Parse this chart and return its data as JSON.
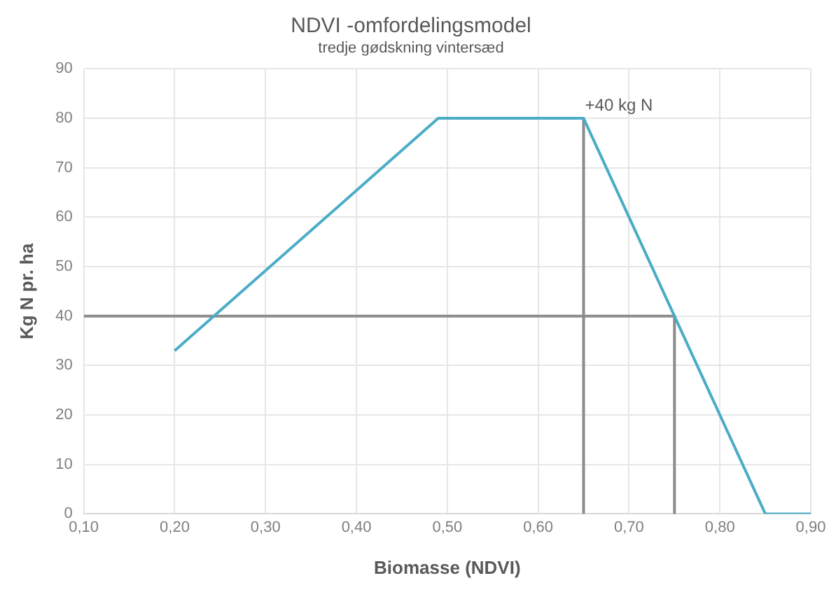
{
  "chart_data": {
    "type": "line",
    "title": "NDVI -omfordelingsmodel",
    "subtitle": "tredje gødskning vintersæd",
    "xlabel": "Biomasse (NDVI)",
    "ylabel": "Kg N pr. ha",
    "series": [
      {
        "color": "#4bacc6",
        "x": [
          0.2,
          0.49,
          0.65,
          0.85,
          0.9
        ],
        "values": [
          33,
          80,
          80,
          0,
          0
        ]
      },
      {
        "color": "#8c8c8c",
        "x": [
          0.1,
          0.75,
          0.75
        ],
        "values": [
          40,
          40,
          0
        ]
      },
      {
        "color": "#8c8c8c",
        "x": [
          0.65,
          0.65
        ],
        "values": [
          0,
          80
        ]
      }
    ],
    "annotations": [
      {
        "text": "+40 kg N",
        "x": 0.65,
        "y": 80
      }
    ],
    "xlim": [
      0.1,
      0.9
    ],
    "xticks": [
      {
        "value": 0.1,
        "label": "0,10"
      },
      {
        "value": 0.2,
        "label": "0,20"
      },
      {
        "value": 0.3,
        "label": "0,30"
      },
      {
        "value": 0.4,
        "label": "0,40"
      },
      {
        "value": 0.5,
        "label": "0,50"
      },
      {
        "value": 0.6,
        "label": "0,60"
      },
      {
        "value": 0.7,
        "label": "0,70"
      },
      {
        "value": 0.8,
        "label": "0,80"
      },
      {
        "value": 0.9,
        "label": "0,90"
      }
    ],
    "ylim": [
      0,
      90
    ],
    "yticks": [
      0,
      10,
      20,
      30,
      40,
      50,
      60,
      70,
      80,
      90
    ],
    "grid": true,
    "legend": false,
    "marker": "none",
    "line_style": "solid"
  }
}
